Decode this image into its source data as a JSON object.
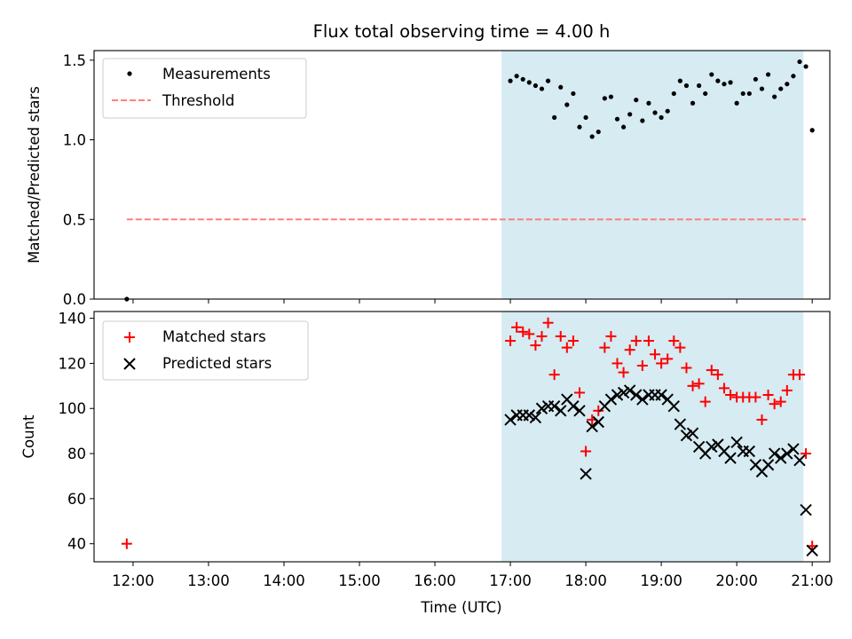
{
  "chart_data": [
    {
      "type": "scatter",
      "title": "Flux total observing time = 4.00 h",
      "ylabel": "Matched/Predicted stars",
      "xlabel": "",
      "ylim": [
        0,
        1.56
      ],
      "yticks": [
        "0.0",
        "0.5",
        "1.0",
        "1.5"
      ],
      "legend": {
        "placement": "upper-left",
        "entries": [
          "Measurements",
          "Threshold"
        ]
      },
      "shaded_region": {
        "from": "16:53",
        "to": "20:53",
        "color": "#add8e6"
      },
      "series": [
        {
          "name": "Measurements",
          "color": "#000000",
          "marker": "dot",
          "points": [
            [
              "11:55",
              0.0
            ],
            [
              "17:00",
              1.37
            ],
            [
              "17:05",
              1.4
            ],
            [
              "17:10",
              1.38
            ],
            [
              "17:15",
              1.36
            ],
            [
              "17:20",
              1.34
            ],
            [
              "17:25",
              1.32
            ],
            [
              "17:30",
              1.37
            ],
            [
              "17:35",
              1.14
            ],
            [
              "17:40",
              1.33
            ],
            [
              "17:45",
              1.22
            ],
            [
              "17:50",
              1.29
            ],
            [
              "17:55",
              1.08
            ],
            [
              "18:00",
              1.14
            ],
            [
              "18:05",
              1.02
            ],
            [
              "18:10",
              1.05
            ],
            [
              "18:15",
              1.26
            ],
            [
              "18:20",
              1.27
            ],
            [
              "18:25",
              1.13
            ],
            [
              "18:30",
              1.08
            ],
            [
              "18:35",
              1.16
            ],
            [
              "18:40",
              1.25
            ],
            [
              "18:45",
              1.12
            ],
            [
              "18:50",
              1.23
            ],
            [
              "18:55",
              1.17
            ],
            [
              "19:00",
              1.14
            ],
            [
              "19:05",
              1.18
            ],
            [
              "19:10",
              1.29
            ],
            [
              "19:15",
              1.37
            ],
            [
              "19:20",
              1.34
            ],
            [
              "19:25",
              1.23
            ],
            [
              "19:30",
              1.34
            ],
            [
              "19:35",
              1.29
            ],
            [
              "19:40",
              1.41
            ],
            [
              "19:45",
              1.37
            ],
            [
              "19:50",
              1.35
            ],
            [
              "19:55",
              1.36
            ],
            [
              "20:00",
              1.23
            ],
            [
              "20:05",
              1.29
            ],
            [
              "20:10",
              1.29
            ],
            [
              "20:15",
              1.38
            ],
            [
              "20:20",
              1.32
            ],
            [
              "20:25",
              1.41
            ],
            [
              "20:30",
              1.27
            ],
            [
              "20:35",
              1.32
            ],
            [
              "20:40",
              1.35
            ],
            [
              "20:45",
              1.4
            ],
            [
              "20:50",
              1.49
            ],
            [
              "20:55",
              1.46
            ],
            [
              "21:00",
              1.06
            ]
          ]
        },
        {
          "name": "Threshold",
          "color": "#ff7f7f",
          "style": "dashed",
          "points": [
            [
              "11:55",
              0.5
            ],
            [
              "20:55",
              0.5
            ]
          ]
        }
      ]
    },
    {
      "type": "scatter",
      "title": "",
      "ylabel": "Count",
      "xlabel": "Time (UTC)",
      "ylim": [
        32,
        143
      ],
      "yticks": [
        "40",
        "60",
        "80",
        "100",
        "120",
        "140"
      ],
      "xticks": [
        "12:00",
        "13:00",
        "14:00",
        "15:00",
        "16:00",
        "17:00",
        "18:00",
        "19:00",
        "20:00",
        "21:00"
      ],
      "xlim": [
        "11:29",
        "21:14"
      ],
      "legend": {
        "placement": "upper-left",
        "entries": [
          "Matched stars",
          "Predicted stars"
        ]
      },
      "shaded_region": {
        "from": "16:53",
        "to": "20:53",
        "color": "#add8e6"
      },
      "series": [
        {
          "name": "Matched stars",
          "color": "#ff0000",
          "marker": "plus",
          "points": [
            [
              "11:55",
              40
            ],
            [
              "17:00",
              130
            ],
            [
              "17:05",
              136
            ],
            [
              "17:10",
              134
            ],
            [
              "17:15",
              133
            ],
            [
              "17:20",
              128
            ],
            [
              "17:25",
              132
            ],
            [
              "17:30",
              138
            ],
            [
              "17:35",
              115
            ],
            [
              "17:40",
              132
            ],
            [
              "17:45",
              127
            ],
            [
              "17:50",
              130
            ],
            [
              "17:55",
              107
            ],
            [
              "18:00",
              81
            ],
            [
              "18:05",
              95
            ],
            [
              "18:10",
              99
            ],
            [
              "18:15",
              127
            ],
            [
              "18:20",
              132
            ],
            [
              "18:25",
              120
            ],
            [
              "18:30",
              116
            ],
            [
              "18:35",
              126
            ],
            [
              "18:40",
              130
            ],
            [
              "18:45",
              119
            ],
            [
              "18:50",
              130
            ],
            [
              "18:55",
              124
            ],
            [
              "19:00",
              120
            ],
            [
              "19:05",
              122
            ],
            [
              "19:10",
              130
            ],
            [
              "19:15",
              127
            ],
            [
              "19:20",
              118
            ],
            [
              "19:25",
              110
            ],
            [
              "19:30",
              111
            ],
            [
              "19:35",
              103
            ],
            [
              "19:40",
              117
            ],
            [
              "19:45",
              115
            ],
            [
              "19:50",
              109
            ],
            [
              "19:55",
              106
            ],
            [
              "20:00",
              105
            ],
            [
              "20:05",
              105
            ],
            [
              "20:10",
              105
            ],
            [
              "20:15",
              105
            ],
            [
              "20:20",
              95
            ],
            [
              "20:25",
              106
            ],
            [
              "20:30",
              102
            ],
            [
              "20:35",
              103
            ],
            [
              "20:40",
              108
            ],
            [
              "20:45",
              115
            ],
            [
              "20:50",
              115
            ],
            [
              "20:55",
              80
            ],
            [
              "21:00",
              39
            ]
          ]
        },
        {
          "name": "Predicted stars",
          "color": "#000000",
          "marker": "x",
          "points": [
            [
              "17:00",
              95
            ],
            [
              "17:05",
              97
            ],
            [
              "17:10",
              97
            ],
            [
              "17:15",
              97
            ],
            [
              "17:20",
              96
            ],
            [
              "17:25",
              100
            ],
            [
              "17:30",
              101
            ],
            [
              "17:35",
              101
            ],
            [
              "17:40",
              99
            ],
            [
              "17:45",
              104
            ],
            [
              "17:50",
              101
            ],
            [
              "17:55",
              99
            ],
            [
              "18:00",
              71
            ],
            [
              "18:05",
              92
            ],
            [
              "18:10",
              94
            ],
            [
              "18:15",
              101
            ],
            [
              "18:20",
              104
            ],
            [
              "18:25",
              106
            ],
            [
              "18:30",
              107
            ],
            [
              "18:35",
              108
            ],
            [
              "18:40",
              106
            ],
            [
              "18:45",
              104
            ],
            [
              "18:50",
              106
            ],
            [
              "18:55",
              106
            ],
            [
              "19:00",
              106
            ],
            [
              "19:05",
              104
            ],
            [
              "19:10",
              101
            ],
            [
              "19:15",
              93
            ],
            [
              "19:20",
              88
            ],
            [
              "19:25",
              89
            ],
            [
              "19:30",
              83
            ],
            [
              "19:35",
              80
            ],
            [
              "19:40",
              83
            ],
            [
              "19:45",
              84
            ],
            [
              "19:50",
              81
            ],
            [
              "19:55",
              78
            ],
            [
              "20:00",
              85
            ],
            [
              "20:05",
              81
            ],
            [
              "20:10",
              81
            ],
            [
              "20:15",
              75
            ],
            [
              "20:20",
              72
            ],
            [
              "20:25",
              75
            ],
            [
              "20:30",
              80
            ],
            [
              "20:35",
              78
            ],
            [
              "20:40",
              80
            ],
            [
              "20:45",
              82
            ],
            [
              "20:50",
              77
            ],
            [
              "20:55",
              55
            ],
            [
              "21:00",
              37
            ]
          ]
        }
      ]
    }
  ]
}
